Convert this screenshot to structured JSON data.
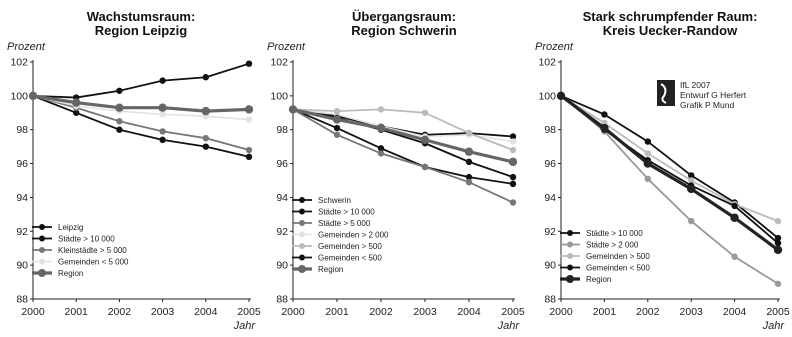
{
  "chart_data": [
    {
      "type": "line",
      "title": "Wachstumsraum:",
      "subtitle": "Region Leipzig",
      "ylabel": "Prozent",
      "xlabel": "Jahr",
      "x": [
        2000,
        2001,
        2002,
        2003,
        2004,
        2005
      ],
      "ylim": [
        88,
        102
      ],
      "yticks": [
        88,
        90,
        92,
        94,
        96,
        98,
        100,
        102
      ],
      "grid": false,
      "legend": "bottom-left",
      "series": [
        {
          "name": "Leipzig",
          "values": [
            100,
            99.9,
            100.3,
            100.9,
            101.1,
            101.9
          ],
          "color": "#111111",
          "width": 1.8
        },
        {
          "name": "Städte > 10 000",
          "values": [
            100,
            99.0,
            98.0,
            97.4,
            97.0,
            96.4
          ],
          "color": "#111111",
          "width": 1.8
        },
        {
          "name": "Kleinstädte > 5 000",
          "values": [
            100,
            99.3,
            98.5,
            97.9,
            97.5,
            96.8
          ],
          "color": "#777777",
          "width": 1.8
        },
        {
          "name": "Gemeinden < 5 000",
          "values": [
            100,
            99.4,
            99.1,
            98.9,
            98.8,
            98.6
          ],
          "color": "#e2e2e2",
          "width": 1.6
        },
        {
          "name": "Region",
          "values": [
            100,
            99.6,
            99.3,
            99.3,
            99.1,
            99.2
          ],
          "color": "#666666",
          "width": 3.2
        }
      ]
    },
    {
      "type": "line",
      "title": "Übergangsraum:",
      "subtitle": "Region Schwerin",
      "ylabel": "Prozent",
      "xlabel": "Jahr",
      "x": [
        2000,
        2001,
        2002,
        2003,
        2004,
        2005
      ],
      "ylim": [
        88,
        102
      ],
      "yticks": [
        88,
        90,
        92,
        94,
        96,
        98,
        100,
        102
      ],
      "grid": false,
      "legend": "bottom-left",
      "series": [
        {
          "name": "Schwerin",
          "values": [
            99.2,
            98.8,
            98.2,
            97.7,
            97.8,
            97.6
          ],
          "color": "#111111",
          "width": 1.8
        },
        {
          "name": "Städte > 10 000",
          "values": [
            99.2,
            98.1,
            96.9,
            95.8,
            95.2,
            94.8
          ],
          "color": "#111111",
          "width": 1.8
        },
        {
          "name": "Städte > 5 000",
          "values": [
            99.2,
            97.7,
            96.6,
            95.8,
            94.9,
            93.7
          ],
          "color": "#777777",
          "width": 1.8
        },
        {
          "name": "Gemeinden > 2 000",
          "values": [
            99.2,
            98.9,
            98.2,
            97.6,
            97.7,
            97.3
          ],
          "color": "#e2e2e2",
          "width": 1.6
        },
        {
          "name": "Gemeinden > 500",
          "values": [
            99.2,
            99.1,
            99.2,
            99.0,
            97.8,
            96.8
          ],
          "color": "#bbbbbb",
          "width": 1.8
        },
        {
          "name": "Gemeinden < 500",
          "values": [
            99.2,
            98.7,
            98.0,
            97.2,
            96.1,
            95.2
          ],
          "color": "#111111",
          "width": 1.8
        },
        {
          "name": "Region",
          "values": [
            99.2,
            98.6,
            98.1,
            97.4,
            96.7,
            96.1
          ],
          "color": "#666666",
          "width": 3.2
        }
      ]
    },
    {
      "type": "line",
      "title": "Stark schrumpfender Raum:",
      "subtitle": "Kreis Uecker-Randow",
      "ylabel": "Prozent",
      "xlabel": "Jahr",
      "x": [
        2000,
        2001,
        2002,
        2003,
        2004,
        2005
      ],
      "ylim": [
        88,
        102
      ],
      "yticks": [
        88,
        90,
        92,
        94,
        96,
        98,
        100,
        102
      ],
      "grid": false,
      "legend": "bottom-left",
      "series": [
        {
          "name": "Städte > 10 000",
          "values": [
            100,
            98.9,
            97.3,
            95.3,
            93.7,
            91.6
          ],
          "color": "#111111",
          "width": 1.8
        },
        {
          "name": "Städte > 2 000",
          "values": [
            100,
            97.9,
            95.1,
            92.6,
            90.5,
            88.9
          ],
          "color": "#999999",
          "width": 1.8
        },
        {
          "name": "Gemeinden > 500",
          "values": [
            100,
            98.4,
            96.6,
            95.0,
            93.6,
            92.6
          ],
          "color": "#bbbbbb",
          "width": 1.8
        },
        {
          "name": "Gemeinden < 500",
          "values": [
            100,
            98.0,
            96.2,
            94.7,
            93.5,
            91.3
          ],
          "color": "#111111",
          "width": 1.8
        },
        {
          "name": "Region",
          "values": [
            100,
            98.1,
            96.0,
            94.5,
            92.8,
            90.9
          ],
          "color": "#222222",
          "width": 3.2
        }
      ]
    }
  ],
  "source_note": {
    "line1": "IfL 2007",
    "line2": "Entwurf  G Herfert",
    "line3": "Grafik  P Mund"
  }
}
